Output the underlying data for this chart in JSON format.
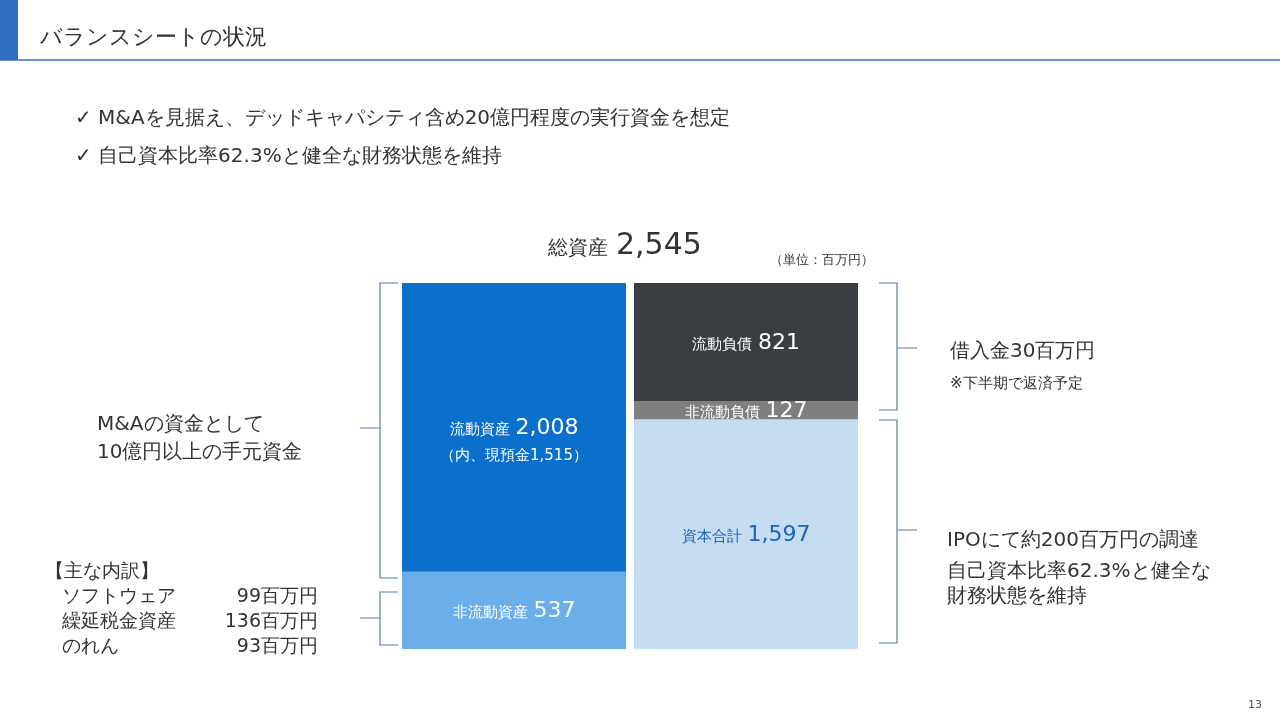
{
  "chart_data": {
    "type": "bar",
    "title": "バランスシートの状況",
    "stacked": true,
    "categories": [
      null,
      null
    ],
    "series": [
      {
        "name": "非流動資産",
        "color": "#6aaeea",
        "values": [
          537,
          null
        ],
        "value_labels": [
          "537",
          null
        ]
      },
      {
        "name": "流動資産",
        "color": "#0b6fcc",
        "values": [
          2008,
          null
        ],
        "value_labels": [
          "2,008",
          null
        ]
      },
      {
        "name": "資本合計",
        "color": "#c6dcf2",
        "values": [
          null,
          1597
        ],
        "value_labels": [
          null,
          "1,597"
        ]
      },
      {
        "name": "非流動負債",
        "color": "#7f7f7f",
        "values": [
          null,
          127
        ],
        "value_labels": [
          null,
          "127"
        ]
      },
      {
        "name": "流動負債",
        "color": "#3a3d42",
        "values": [
          null,
          821
        ],
        "value_labels": [
          null,
          "821"
        ]
      }
    ],
    "annotations": [
      "✓ M&Aを見据え、デッドキャパシティ含め20億円程度の実行資金を想定",
      "✓ 自己資本比率62.3%と健全な財務状態を維持",
      "総資産 2,545",
      "（単位：百万円）",
      "（内、現預金1,515）",
      "M&Aの資金として",
      "10億円以上の手元資金",
      "【主な内訳】",
      "ソフトウェア",
      "99百万円",
      "繰延税金資産",
      "136百万円",
      "のれん",
      "93百万円",
      "借入金30百万円",
      "※下半期で返済予定",
      "IPOにて約200百万円の調達",
      "自己資本比率62.3%と健全な",
      "財務状態を維持",
      "13"
    ]
  }
}
